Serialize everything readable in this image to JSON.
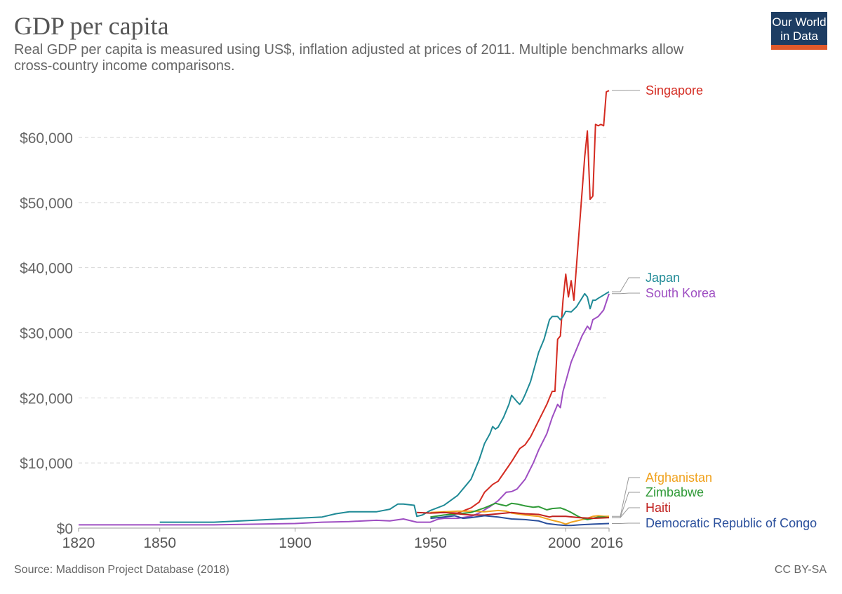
{
  "header": {
    "title": "GDP per capita",
    "subtitle": "Real GDP per capita is measured using US$, inflation adjusted at prices of 2011. Multiple benchmarks allow cross-country income comparisons.",
    "logo_line1": "Our World",
    "logo_line2": "in Data",
    "logo_color": "#1d3d63",
    "logo_accent": "#e0592b"
  },
  "footer": {
    "source": "Source: Maddison Project Database (2018)",
    "license": "CC BY-SA"
  },
  "chart_data": {
    "type": "line",
    "title": "GDP per capita",
    "xlim": [
      1820,
      2016
    ],
    "ylim": [
      0,
      67000
    ],
    "x_ticks": [
      1820,
      1850,
      1900,
      1950,
      2000,
      2016
    ],
    "y_ticks": [
      {
        "value": 0,
        "label": "$0"
      },
      {
        "value": 10000,
        "label": "$10,000"
      },
      {
        "value": 20000,
        "label": "$20,000"
      },
      {
        "value": 30000,
        "label": "$30,000"
      },
      {
        "value": 40000,
        "label": "$40,000"
      },
      {
        "value": 50000,
        "label": "$50,000"
      },
      {
        "value": 60000,
        "label": "$60,000"
      }
    ],
    "grid": true,
    "legend": "right-end labels",
    "series": [
      {
        "name": "Singapore",
        "color": "#d42b21",
        "label_value": 66500,
        "points": [
          [
            1950,
            2300
          ],
          [
            1955,
            2400
          ],
          [
            1960,
            2300
          ],
          [
            1965,
            3100
          ],
          [
            1968,
            4000
          ],
          [
            1970,
            5500
          ],
          [
            1973,
            6700
          ],
          [
            1975,
            7200
          ],
          [
            1978,
            9000
          ],
          [
            1980,
            10200
          ],
          [
            1983,
            12200
          ],
          [
            1985,
            12800
          ],
          [
            1987,
            14000
          ],
          [
            1990,
            16500
          ],
          [
            1993,
            19000
          ],
          [
            1995,
            21000
          ],
          [
            1996,
            21000
          ],
          [
            1997,
            29000
          ],
          [
            1998,
            29500
          ],
          [
            1999,
            35000
          ],
          [
            2000,
            39000
          ],
          [
            2001,
            35500
          ],
          [
            2002,
            38000
          ],
          [
            2003,
            35000
          ],
          [
            2005,
            46000
          ],
          [
            2007,
            57000
          ],
          [
            2008,
            61000
          ],
          [
            2009,
            50500
          ],
          [
            2010,
            51000
          ],
          [
            2011,
            62000
          ],
          [
            2012,
            61800
          ],
          [
            2013,
            62000
          ],
          [
            2014,
            61800
          ],
          [
            2015,
            67000
          ],
          [
            2016,
            67200
          ]
        ]
      },
      {
        "name": "Japan",
        "color": "#1f8a96",
        "label_value": 38500,
        "points": [
          [
            1850,
            900
          ],
          [
            1870,
            900
          ],
          [
            1880,
            1100
          ],
          [
            1890,
            1300
          ],
          [
            1900,
            1500
          ],
          [
            1910,
            1700
          ],
          [
            1915,
            2200
          ],
          [
            1920,
            2500
          ],
          [
            1930,
            2500
          ],
          [
            1935,
            2900
          ],
          [
            1938,
            3700
          ],
          [
            1940,
            3700
          ],
          [
            1944,
            3500
          ],
          [
            1945,
            1800
          ],
          [
            1947,
            2000
          ],
          [
            1950,
            2700
          ],
          [
            1955,
            3500
          ],
          [
            1960,
            5000
          ],
          [
            1963,
            6500
          ],
          [
            1965,
            7500
          ],
          [
            1968,
            10500
          ],
          [
            1970,
            13000
          ],
          [
            1972,
            14500
          ],
          [
            1973,
            15600
          ],
          [
            1974,
            15200
          ],
          [
            1975,
            15500
          ],
          [
            1977,
            17000
          ],
          [
            1979,
            19000
          ],
          [
            1980,
            20400
          ],
          [
            1982,
            19400
          ],
          [
            1983,
            19000
          ],
          [
            1984,
            19600
          ],
          [
            1985,
            20500
          ],
          [
            1987,
            22500
          ],
          [
            1990,
            27000
          ],
          [
            1992,
            29000
          ],
          [
            1994,
            32000
          ],
          [
            1995,
            32500
          ],
          [
            1997,
            32500
          ],
          [
            1998,
            32000
          ],
          [
            1999,
            32500
          ],
          [
            2000,
            33300
          ],
          [
            2002,
            33200
          ],
          [
            2004,
            34000
          ],
          [
            2007,
            36000
          ],
          [
            2008,
            35500
          ],
          [
            2009,
            33700
          ],
          [
            2010,
            35000
          ],
          [
            2011,
            35000
          ],
          [
            2012,
            35300
          ],
          [
            2014,
            35800
          ],
          [
            2016,
            36300
          ]
        ]
      },
      {
        "name": "South Korea",
        "color": "#9e4ec2",
        "label_value": 36000,
        "points": [
          [
            1820,
            500
          ],
          [
            1850,
            500
          ],
          [
            1870,
            500
          ],
          [
            1900,
            700
          ],
          [
            1910,
            900
          ],
          [
            1920,
            1000
          ],
          [
            1930,
            1200
          ],
          [
            1935,
            1100
          ],
          [
            1940,
            1400
          ],
          [
            1945,
            900
          ],
          [
            1950,
            900
          ],
          [
            1953,
            1400
          ],
          [
            1955,
            1500
          ],
          [
            1960,
            1500
          ],
          [
            1965,
            1800
          ],
          [
            1968,
            2300
          ],
          [
            1970,
            2800
          ],
          [
            1972,
            3300
          ],
          [
            1975,
            4200
          ],
          [
            1978,
            5500
          ],
          [
            1980,
            5600
          ],
          [
            1982,
            6000
          ],
          [
            1985,
            7500
          ],
          [
            1988,
            10000
          ],
          [
            1990,
            12000
          ],
          [
            1993,
            14500
          ],
          [
            1995,
            17000
          ],
          [
            1997,
            19000
          ],
          [
            1998,
            18500
          ],
          [
            1999,
            21000
          ],
          [
            2000,
            22500
          ],
          [
            2002,
            25500
          ],
          [
            2004,
            27500
          ],
          [
            2006,
            29500
          ],
          [
            2008,
            31000
          ],
          [
            2009,
            30500
          ],
          [
            2010,
            32000
          ],
          [
            2012,
            32500
          ],
          [
            2014,
            33500
          ],
          [
            2016,
            36000
          ]
        ]
      },
      {
        "name": "Afghanistan",
        "color": "#f0a21e",
        "label_value": 7800,
        "points": [
          [
            1950,
            2400
          ],
          [
            1955,
            2500
          ],
          [
            1960,
            2600
          ],
          [
            1965,
            2600
          ],
          [
            1970,
            2500
          ],
          [
            1975,
            2700
          ],
          [
            1978,
            2600
          ],
          [
            1980,
            2300
          ],
          [
            1985,
            2000
          ],
          [
            1990,
            1800
          ],
          [
            1995,
            1200
          ],
          [
            1998,
            900
          ],
          [
            2000,
            600
          ],
          [
            2002,
            900
          ],
          [
            2005,
            1200
          ],
          [
            2008,
            1500
          ],
          [
            2010,
            1800
          ],
          [
            2012,
            1900
          ],
          [
            2014,
            1800
          ],
          [
            2016,
            1800
          ]
        ]
      },
      {
        "name": "Zimbabwe",
        "color": "#2f9a37",
        "label_value": 5400,
        "points": [
          [
            1950,
            1700
          ],
          [
            1955,
            2000
          ],
          [
            1960,
            2200
          ],
          [
            1965,
            2400
          ],
          [
            1970,
            3100
          ],
          [
            1974,
            3800
          ],
          [
            1976,
            3600
          ],
          [
            1978,
            3400
          ],
          [
            1980,
            3800
          ],
          [
            1982,
            3700
          ],
          [
            1985,
            3400
          ],
          [
            1988,
            3200
          ],
          [
            1990,
            3300
          ],
          [
            1993,
            2800
          ],
          [
            1995,
            3000
          ],
          [
            1998,
            3100
          ],
          [
            2000,
            2800
          ],
          [
            2002,
            2400
          ],
          [
            2005,
            1700
          ],
          [
            2008,
            1300
          ],
          [
            2010,
            1500
          ],
          [
            2012,
            1700
          ],
          [
            2014,
            1700
          ],
          [
            2016,
            1600
          ]
        ]
      },
      {
        "name": "Haiti",
        "color": "#c0211f",
        "label_value": 2700,
        "points": [
          [
            1945,
            2400
          ],
          [
            1950,
            2300
          ],
          [
            1955,
            2400
          ],
          [
            1960,
            2200
          ],
          [
            1965,
            2000
          ],
          [
            1970,
            2000
          ],
          [
            1975,
            2200
          ],
          [
            1980,
            2400
          ],
          [
            1985,
            2200
          ],
          [
            1990,
            2100
          ],
          [
            1994,
            1700
          ],
          [
            1995,
            1800
          ],
          [
            2000,
            1800
          ],
          [
            2005,
            1600
          ],
          [
            2010,
            1500
          ],
          [
            2016,
            1600
          ]
        ]
      },
      {
        "name": "Democratic Republic of Congo",
        "color": "#2a4f9c",
        "label_value": 600,
        "points": [
          [
            1950,
            1500
          ],
          [
            1955,
            1700
          ],
          [
            1959,
            1900
          ],
          [
            1962,
            1500
          ],
          [
            1965,
            1600
          ],
          [
            1970,
            1900
          ],
          [
            1975,
            1700
          ],
          [
            1980,
            1400
          ],
          [
            1985,
            1300
          ],
          [
            1990,
            1100
          ],
          [
            1993,
            700
          ],
          [
            1997,
            500
          ],
          [
            2000,
            400
          ],
          [
            2002,
            400
          ],
          [
            2005,
            500
          ],
          [
            2010,
            600
          ],
          [
            2016,
            700
          ]
        ]
      }
    ]
  }
}
